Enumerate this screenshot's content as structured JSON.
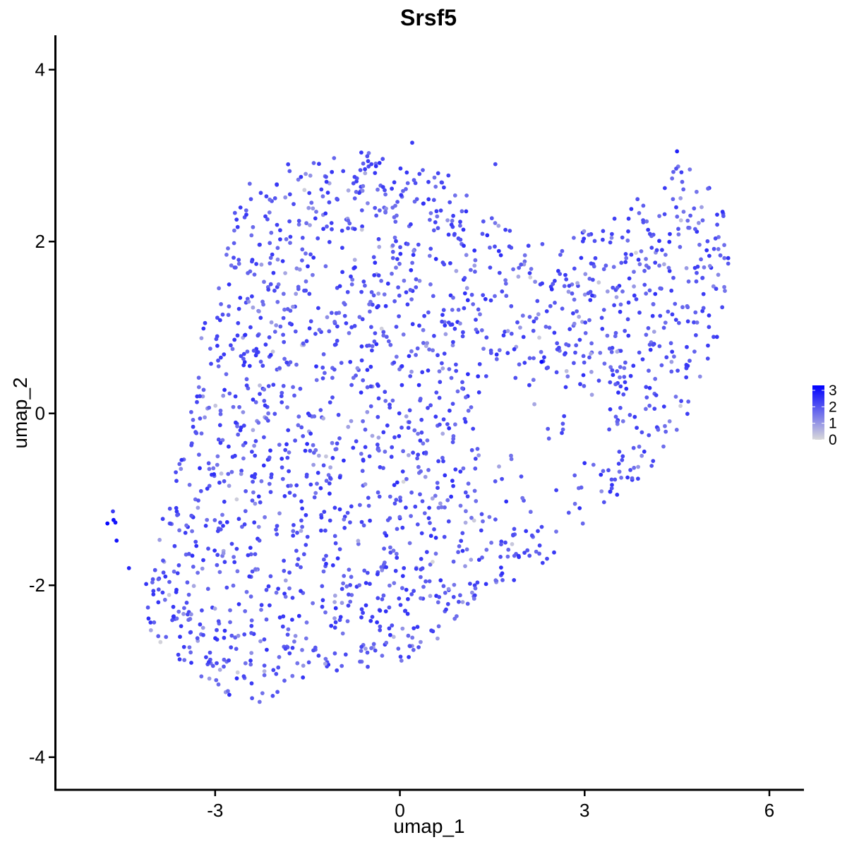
{
  "chart_data": {
    "type": "scatter",
    "title": "Srsf5",
    "xlabel": "umap_1",
    "ylabel": "umap_2",
    "xlim": [
      -5.6,
      6.55
    ],
    "ylim": [
      -4.38,
      4.4
    ],
    "xticks": [
      -3,
      0,
      3,
      6
    ],
    "yticks": [
      -4,
      -2,
      0,
      2,
      4
    ],
    "xtick_labels": [
      "-3",
      "0",
      "3",
      "6"
    ],
    "ytick_labels": [
      "-4",
      "-2",
      "0",
      "2",
      "4"
    ],
    "grid": false,
    "color_scale": {
      "low": "#d9d9d9",
      "high": "#0000ff",
      "range": [
        0,
        3.3
      ],
      "ticks": [
        0,
        1,
        2,
        3
      ],
      "tick_labels": [
        "0",
        "1",
        "2",
        "3"
      ],
      "position": "right"
    },
    "cluster_outline": [
      [
        -4.2,
        -2.2
      ],
      [
        -4.0,
        -1.3
      ],
      [
        -3.6,
        -0.6
      ],
      [
        -3.4,
        0.0
      ],
      [
        -3.2,
        1.0
      ],
      [
        -2.9,
        2.0
      ],
      [
        -2.5,
        2.7
      ],
      [
        -1.5,
        3.0
      ],
      [
        -0.3,
        3.05
      ],
      [
        0.5,
        2.9
      ],
      [
        1.2,
        2.6
      ],
      [
        1.6,
        2.3
      ],
      [
        2.0,
        1.95
      ],
      [
        2.8,
        2.1
      ],
      [
        3.6,
        2.4
      ],
      [
        4.0,
        2.6
      ],
      [
        4.5,
        3.0
      ],
      [
        5.0,
        2.7
      ],
      [
        5.4,
        2.2
      ],
      [
        5.3,
        1.4
      ],
      [
        5.1,
        0.6
      ],
      [
        4.7,
        0.0
      ],
      [
        4.0,
        -0.7
      ],
      [
        3.5,
        -1.0
      ],
      [
        2.6,
        -1.6
      ],
      [
        2.0,
        -1.9
      ],
      [
        1.3,
        -2.1
      ],
      [
        0.6,
        -2.7
      ],
      [
        0.0,
        -3.0
      ],
      [
        -0.5,
        -3.0
      ],
      [
        -1.2,
        -3.0
      ],
      [
        -1.9,
        -3.2
      ],
      [
        -2.3,
        -3.45
      ],
      [
        -2.9,
        -3.3
      ],
      [
        -3.5,
        -3.0
      ],
      [
        -4.1,
        -2.6
      ]
    ],
    "cluster_hole": [
      [
        1.0,
        0.85
      ],
      [
        1.8,
        0.55
      ],
      [
        2.6,
        0.45
      ],
      [
        3.2,
        0.3
      ],
      [
        3.5,
        -0.3
      ],
      [
        3.2,
        -0.9
      ],
      [
        2.5,
        -1.2
      ],
      [
        1.8,
        -1.3
      ],
      [
        1.2,
        -1.0
      ],
      [
        1.3,
        -0.4
      ],
      [
        1.1,
        0.3
      ]
    ],
    "n_points_main": 1950,
    "points_fixed": [
      [
        -4.75,
        -1.28,
        3.2
      ],
      [
        -4.65,
        -1.24,
        3.1
      ],
      [
        -4.62,
        -1.27,
        3.0
      ],
      [
        -4.66,
        -1.14,
        2.4
      ],
      [
        -4.6,
        -1.48,
        3.0
      ],
      [
        -4.4,
        -1.8,
        2.7
      ],
      [
        2.3,
        0.6,
        3.2
      ],
      [
        4.5,
        3.05,
        2.8
      ],
      [
        -1.55,
        2.6,
        0.2
      ],
      [
        -1.2,
        -0.5,
        0.3
      ],
      [
        -2.65,
        -1.0,
        0.2
      ],
      [
        -2.9,
        -0.7,
        0.4
      ],
      [
        -0.1,
        -2.6,
        0.5
      ],
      [
        4.9,
        2.4,
        0.9
      ],
      [
        -2.2,
        -3.0,
        0.6
      ],
      [
        -1.65,
        2.72,
        1.5
      ],
      [
        0.2,
        3.15,
        2.4
      ],
      [
        1.55,
        2.9,
        2.2
      ]
    ]
  }
}
